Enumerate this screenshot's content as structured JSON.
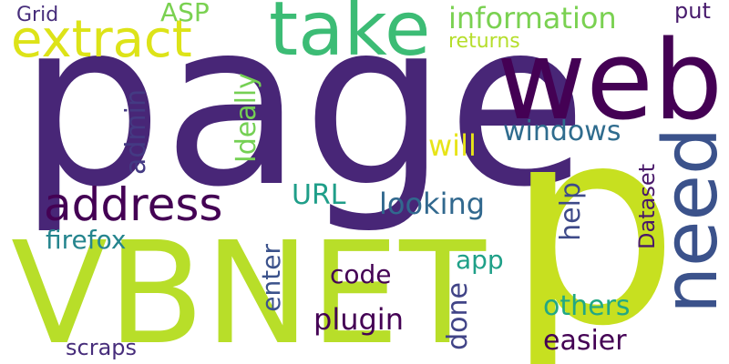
{
  "words": [
    {
      "text": "page",
      "color": "#482677"
    },
    {
      "text": "p",
      "color": "#c7e020"
    },
    {
      "text": "VBNET",
      "color": "#b8de29"
    },
    {
      "text": "web",
      "color": "#440154"
    },
    {
      "text": "take",
      "color": "#3cbc75"
    },
    {
      "text": "extract",
      "color": "#dde318"
    },
    {
      "text": "need",
      "color": "#3b528b"
    },
    {
      "text": "address",
      "color": "#440154"
    },
    {
      "text": "information",
      "color": "#7ad151"
    },
    {
      "text": "returns",
      "color": "#b5de2b"
    },
    {
      "text": "ASP",
      "color": "#7ad151"
    },
    {
      "text": "put",
      "color": "#481b6d"
    },
    {
      "text": "Grid",
      "color": "#472d7b"
    },
    {
      "text": "admin",
      "color": "#443a83"
    },
    {
      "text": "Ideally",
      "color": "#75d054"
    },
    {
      "text": "will",
      "color": "#e7e419"
    },
    {
      "text": "windows",
      "color": "#2f6c8e"
    },
    {
      "text": "Dataset",
      "color": "#481769"
    },
    {
      "text": "URL",
      "color": "#1f9e89"
    },
    {
      "text": "looking",
      "color": "#31688e"
    },
    {
      "text": "help",
      "color": "#3e4a89"
    },
    {
      "text": "firefox",
      "color": "#25858e"
    },
    {
      "text": "app",
      "color": "#1fa088"
    },
    {
      "text": "code",
      "color": "#440154"
    },
    {
      "text": "enter",
      "color": "#3b528b"
    },
    {
      "text": "plugin",
      "color": "#440154"
    },
    {
      "text": "done",
      "color": "#414487"
    },
    {
      "text": "others",
      "color": "#22a884"
    },
    {
      "text": "easier",
      "color": "#440154"
    },
    {
      "text": "scraps",
      "color": "#472d7b"
    }
  ]
}
